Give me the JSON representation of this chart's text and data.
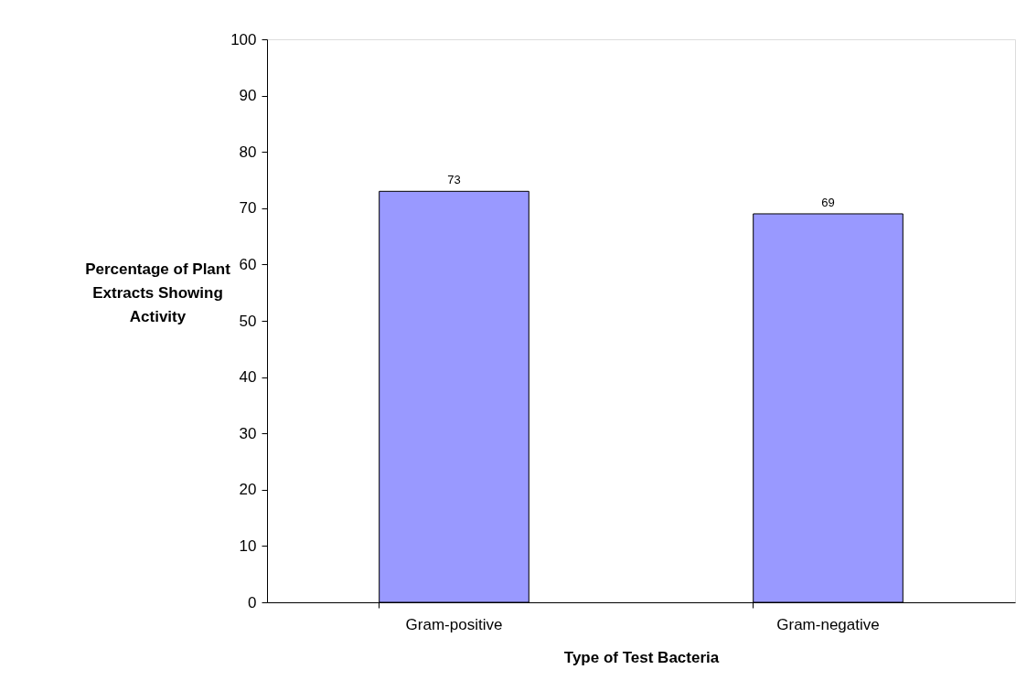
{
  "chart_data": {
    "type": "bar",
    "xlabel": "Type of Test Bacteria",
    "ylabel": "Percentage of Plant Extracts Showing Activity",
    "categories": [
      "Gram-positive",
      "Gram-negative"
    ],
    "values": [
      73,
      69
    ],
    "color": "#9999ff",
    "ylim": [
      0,
      100
    ],
    "yticks": [
      0,
      10,
      20,
      30,
      40,
      50,
      60,
      70,
      80,
      90,
      100
    ],
    "grid": false,
    "data_labels": true
  }
}
